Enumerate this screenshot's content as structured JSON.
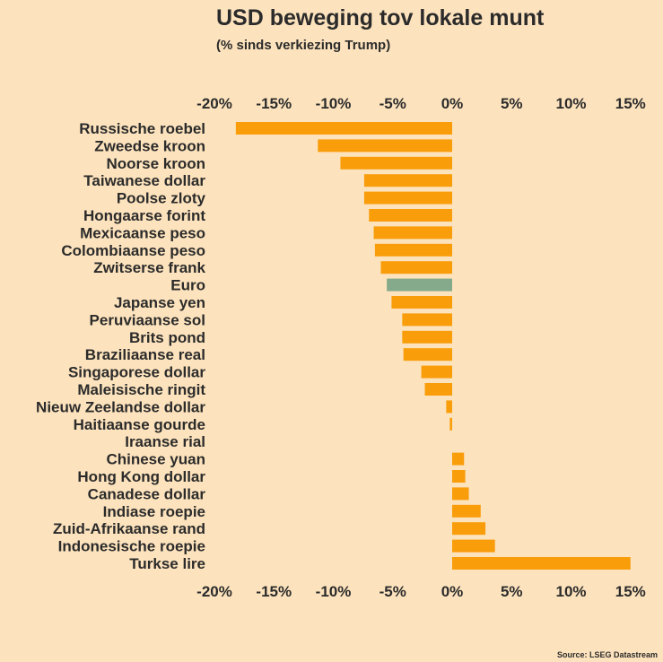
{
  "title": "USD beweging tov lokale munt",
  "subtitle": "(% sinds verkiezing Trump)",
  "source": "Source: LSEG Datastream",
  "colors": {
    "background": "#fde3bd",
    "bar": "#f99d0a",
    "highlight": "#85aa8b",
    "text": "#2b2b2b"
  },
  "chart_data": {
    "type": "bar",
    "orientation": "horizontal",
    "xlim": [
      -20,
      15
    ],
    "ticks": [
      -20,
      -15,
      -10,
      -5,
      0,
      5,
      10,
      15
    ],
    "tick_labels": [
      "-20%",
      "-15%",
      "-10%",
      "-5%",
      "0%",
      "5%",
      "10%",
      "15%"
    ],
    "axis_position": "top and bottom",
    "grid": false,
    "highlight_category": "Euro",
    "categories": [
      "Russische roebel",
      "Zweedse kroon",
      "Noorse kroon",
      "Taiwanese dollar",
      "Poolse zloty",
      "Hongaarse forint",
      "Mexicaanse peso",
      "Colombiaanse peso",
      "Zwitserse frank",
      "Euro",
      "Japanse yen",
      "Peruviaanse sol",
      "Brits pond",
      "Braziliaanse real",
      "Singaporese dollar",
      "Maleisische ringit",
      "Nieuw Zeelandse dollar",
      "Haitiaanse gourde",
      "Iraanse rial",
      "Chinese yuan",
      "Hong Kong dollar",
      "Canadese dollar",
      "Indiase roepie",
      "Zuid-Afrikaanse rand",
      "Indonesische roepie",
      "Turkse lire"
    ],
    "values": [
      -18.2,
      -11.3,
      -9.4,
      -7.4,
      -7.4,
      -7.0,
      -6.6,
      -6.5,
      -6.0,
      -5.5,
      -5.1,
      -4.2,
      -4.2,
      -4.1,
      -2.6,
      -2.3,
      -0.5,
      -0.2,
      0,
      1.0,
      1.1,
      1.4,
      2.4,
      2.8,
      3.6,
      15.0
    ]
  }
}
